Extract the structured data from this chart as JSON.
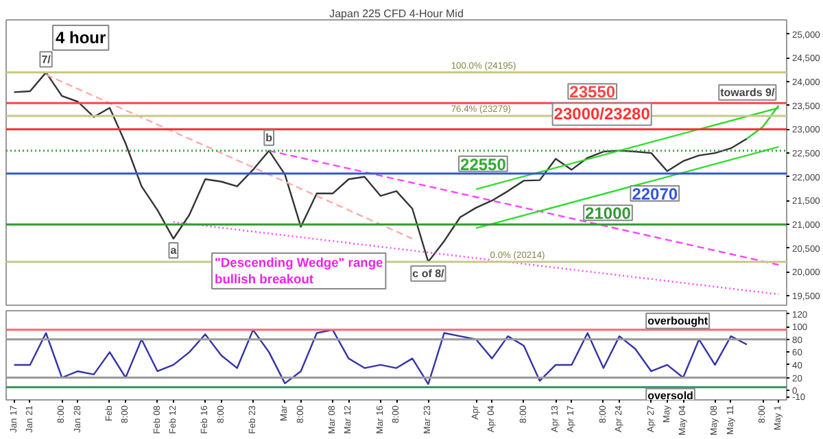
{
  "chart_data": [
    {
      "type": "line",
      "title": "Japan 225 CFD 4-Hour Mid",
      "ylim": [
        19300,
        25300
      ],
      "tick_labels": "y",
      "categories": [
        null,
        null,
        null,
        null,
        null,
        null,
        null,
        null,
        null,
        null,
        null,
        null,
        null,
        null,
        null,
        null,
        null,
        null,
        null,
        null,
        null,
        null,
        null,
        null,
        null,
        null,
        null,
        null,
        null,
        null,
        null,
        null,
        null,
        null,
        null,
        null,
        null,
        null,
        null,
        null,
        null,
        null,
        null,
        null,
        null,
        null,
        null,
        null,
        null
      ],
      "yticks": [
        {
          "value": 19500,
          "label": "19,500"
        },
        {
          "value": 20000,
          "label": "20,000"
        },
        {
          "value": 20500,
          "label": "20,500"
        },
        {
          "value": 21000,
          "label": "21,000"
        },
        {
          "value": 21500,
          "label": "21,500"
        },
        {
          "value": 22000,
          "label": "22,000"
        },
        {
          "value": 22500,
          "label": "22,500"
        },
        {
          "value": 23000,
          "label": "23,000"
        },
        {
          "value": 23500,
          "label": "23,500"
        },
        {
          "value": 24000,
          "label": "24,000"
        },
        {
          "value": 24500,
          "label": "24,500"
        },
        {
          "value": 25000,
          "label": "25,000"
        }
      ],
      "series": [
        {
          "color": "#333333",
          "values": [
            23780,
            23800,
            24195,
            23700,
            23580,
            23260,
            23450,
            22700,
            21800,
            21300,
            20700,
            21200,
            21950,
            21900,
            21800,
            22150,
            22550,
            22050,
            20950,
            21650,
            21650,
            21950,
            22000,
            21600,
            21700,
            21330,
            20214,
            20650,
            21150,
            21350,
            21500,
            21700,
            21920,
            21930,
            22380,
            22150,
            22400,
            22530,
            22550,
            22530,
            22500,
            22120,
            22330,
            22450,
            22500,
            22600,
            22800,
            null,
            null
          ]
        },
        {
          "color": "#ffaaaa",
          "line_style": "dashed",
          "values": [
            null,
            null,
            24150,
            24000,
            23850,
            23700,
            23550,
            23400,
            23250,
            23100,
            22950,
            22800,
            22650,
            22500,
            22350,
            22200,
            22050,
            21900,
            21750,
            21600,
            21450,
            21300,
            21150,
            21000,
            20850,
            20700,
            null,
            null,
            null,
            null,
            null,
            null,
            null,
            null,
            null,
            null,
            null,
            null,
            null,
            null,
            null,
            null,
            null,
            null,
            null,
            null,
            null,
            null,
            null
          ]
        },
        {
          "color": "#ff44ff",
          "line_style": "dashed",
          "values": [
            null,
            null,
            null,
            null,
            null,
            null,
            null,
            null,
            null,
            null,
            null,
            null,
            null,
            null,
            null,
            null,
            22550,
            22475,
            22400,
            22325,
            22250,
            22175,
            22100,
            22025,
            21950,
            21875,
            21800,
            21725,
            21650,
            21575,
            21500,
            21425,
            21350,
            21275,
            21200,
            21125,
            21050,
            20975,
            20900,
            20825,
            20750,
            20675,
            20600,
            20525,
            20450,
            20375,
            20300,
            20225,
            20150
          ]
        },
        {
          "color": "#ff44ff",
          "line_style": "dotted",
          "values": [
            null,
            null,
            null,
            null,
            null,
            null,
            null,
            null,
            null,
            null,
            21050,
            21010,
            20970,
            20930,
            20890,
            20850,
            20810,
            20770,
            20730,
            20690,
            20650,
            20610,
            20570,
            20530,
            20490,
            20450,
            20410,
            20370,
            20330,
            20290,
            20250,
            20210,
            20170,
            20130,
            20090,
            20050,
            20010,
            19970,
            19930,
            19890,
            19850,
            19810,
            19770,
            19730,
            19690,
            19650,
            19610,
            19570,
            19530
          ]
        },
        {
          "color": "#33dd33",
          "values": [
            null,
            null,
            null,
            null,
            null,
            null,
            null,
            null,
            null,
            null,
            null,
            null,
            null,
            null,
            null,
            null,
            null,
            null,
            null,
            null,
            null,
            null,
            null,
            null,
            null,
            null,
            null,
            null,
            null,
            21740,
            21830,
            21920,
            22010,
            22100,
            22190,
            22280,
            22370,
            22460,
            22550,
            22640,
            22730,
            22820,
            22910,
            23000,
            23090,
            23180,
            23270,
            23360,
            23450
          ]
        },
        {
          "color": "#33dd33",
          "values": [
            null,
            null,
            null,
            null,
            null,
            null,
            null,
            null,
            null,
            null,
            null,
            null,
            null,
            null,
            null,
            null,
            null,
            null,
            null,
            null,
            null,
            null,
            null,
            null,
            null,
            null,
            null,
            null,
            null,
            20920,
            21010,
            21100,
            21190,
            21280,
            21370,
            21460,
            21550,
            21640,
            21730,
            21820,
            21910,
            22000,
            22090,
            22180,
            22270,
            22360,
            22450,
            22540,
            22630
          ]
        },
        {
          "color": "#33cc33",
          "values": [
            null,
            null,
            null,
            null,
            null,
            null,
            null,
            null,
            null,
            null,
            null,
            null,
            null,
            null,
            null,
            null,
            null,
            null,
            null,
            null,
            null,
            null,
            null,
            null,
            null,
            null,
            null,
            null,
            null,
            null,
            null,
            null,
            null,
            null,
            null,
            null,
            null,
            null,
            null,
            null,
            null,
            null,
            null,
            null,
            null,
            null,
            22800,
            23050,
            23500
          ]
        }
      ],
      "ref_lines": [
        {
          "axis": "y",
          "value": 24195,
          "label": "100.0% (24195)",
          "color": "#c8c88a"
        },
        {
          "axis": "y",
          "value": 23279,
          "label": "76.4% (23279)",
          "color": "#c8c88a"
        },
        {
          "axis": "y",
          "value": 20214,
          "label": "0.0% (20214)",
          "color": "#c8c88a"
        },
        {
          "axis": "y",
          "value": 23550,
          "label": "23550",
          "color": "#ff4444"
        },
        {
          "axis": "y",
          "value": 23000,
          "label": "23000/23280",
          "color": "#ff3333"
        },
        {
          "axis": "y",
          "value": 22550,
          "label": "22550",
          "color": "#33aa33",
          "line_style": "dotted"
        },
        {
          "axis": "y",
          "value": 22070,
          "label": "22070",
          "color": "#3355dd"
        },
        {
          "axis": "y",
          "value": 21000,
          "label": "21000",
          "color": "#339933"
        }
      ],
      "annotations": [
        "4 hour",
        "\"Descending Wedge\" range\nbullish breakout",
        {
          "text": "7/",
          "y": 24195
        },
        {
          "text": "a",
          "y": 20700
        },
        {
          "text": "b",
          "y": 22550
        },
        {
          "text": "c of 8/",
          "y": 20214
        },
        {
          "text": "towards 9/",
          "y": 23500
        }
      ]
    },
    {
      "type": "line",
      "ylim": [
        -15,
        125
      ],
      "categories": [
        "Jan 17",
        "Jan 21",
        null,
        "8:00",
        "Jan 28",
        null,
        "Feb",
        "8:00",
        null,
        "Feb 08",
        "Feb 12",
        null,
        "Feb 16",
        "8:00",
        null,
        "Feb 23",
        null,
        "Mar",
        "8:00",
        null,
        "Mar 08",
        "Mar 12",
        null,
        "Mar 16",
        "8:00",
        null,
        "Mar 23",
        null,
        null,
        "Apr",
        "Apr 04",
        null,
        "8:00",
        null,
        "Apr 13",
        "Apr 17",
        null,
        "8:00",
        "Apr 24",
        null,
        "Apr 27",
        "May",
        "May 04",
        null,
        "May 08",
        "May 11",
        null,
        "8:00",
        "May 1"
      ],
      "yticks": [
        -10,
        0,
        20,
        40,
        60,
        80,
        100,
        120
      ],
      "series": [
        {
          "color": "#3333aa",
          "values": [
            40,
            40,
            90,
            20,
            30,
            25,
            60,
            20,
            80,
            30,
            40,
            60,
            88,
            55,
            35,
            95,
            60,
            11,
            30,
            90,
            95,
            50,
            35,
            40,
            35,
            50,
            10,
            90,
            85,
            80,
            50,
            85,
            70,
            15,
            40,
            40,
            90,
            35,
            85,
            65,
            30,
            40,
            20,
            80,
            40,
            85,
            72,
            null,
            null
          ]
        }
      ],
      "ref_lines": [
        {
          "axis": "y",
          "value": 95,
          "label": "overbought",
          "color": "#ff6677"
        },
        {
          "axis": "y",
          "value": 80,
          "color": "#999999"
        },
        {
          "axis": "y",
          "value": 20,
          "color": "#999999"
        },
        {
          "axis": "y",
          "value": 5,
          "label": "oversold",
          "color": "#339966"
        }
      ]
    }
  ]
}
